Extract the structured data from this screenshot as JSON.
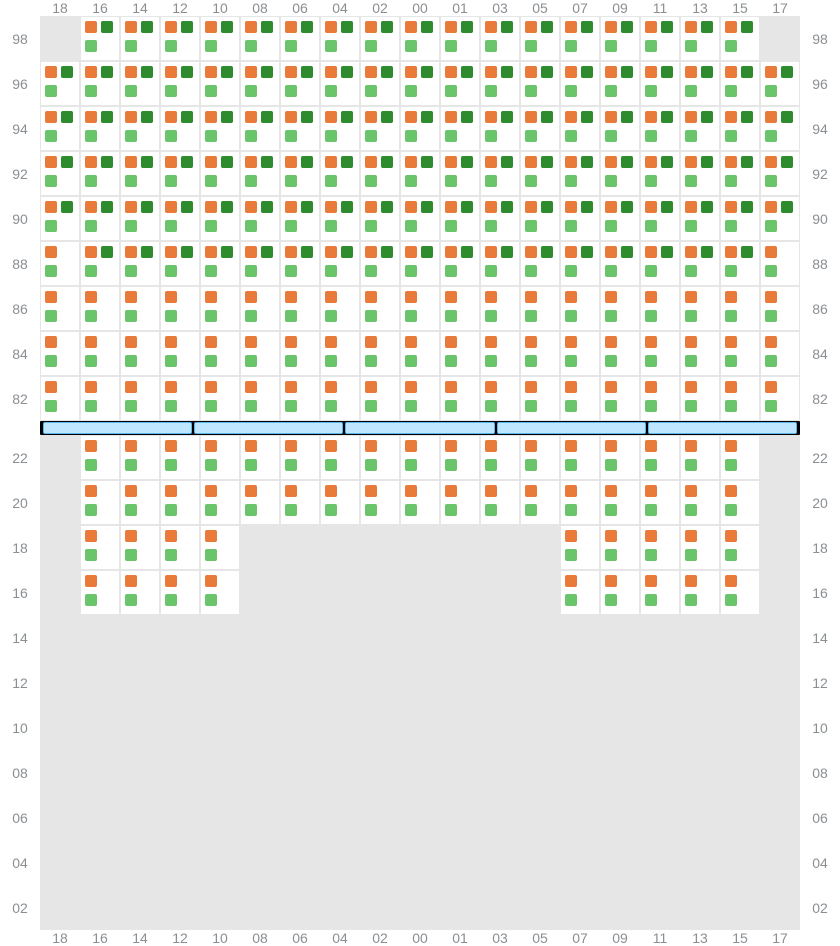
{
  "colors": {
    "orangeDark": "#e87a3a",
    "orangeLight": "#ea8f57",
    "greenDark": "#2e8b2e",
    "greenLight": "#6ac46a",
    "cellFilled": "#ffffff",
    "cellEmpty": "#e6e6e6",
    "gridLine": "#e6e6e6",
    "label": "#8a8f94",
    "dividerBg": "#000000",
    "dividerSeg": "#bfe6ff",
    "dividerBorder": "#5ab8ec"
  },
  "columnLabels": [
    "18",
    "16",
    "14",
    "12",
    "10",
    "08",
    "06",
    "04",
    "02",
    "00",
    "01",
    "03",
    "05",
    "07",
    "09",
    "11",
    "13",
    "15",
    "17"
  ],
  "topSection": {
    "rowLabels": [
      "98",
      "96",
      "94",
      "92",
      "90",
      "88",
      "86",
      "84",
      "82"
    ],
    "cells": {
      "note": "Each cell keyed by rowIndex_colIndex. 'state' is 'filled' or 'empty'. 'pattern' lists which of 4 sub-squares are present with their color key (tl,tr,bl,br).",
      "patterns": {
        "full4": {
          "tl": "orangeDark",
          "tr": "greenDark",
          "bl": "greenLight",
          "br": null
        },
        "full4b": {
          "tl": "orangeDark",
          "tr": "greenDark",
          "bl": "greenLight",
          "br": null
        },
        "twoStack": {
          "tl": "orangeDark",
          "tr": null,
          "bl": "greenLight",
          "br": null
        }
      }
    },
    "layout": [
      {
        "row": "98",
        "emptyCols": [
          "18",
          "17"
        ],
        "pattern": "full4",
        "filledCols": [
          "16",
          "14",
          "12",
          "10",
          "08",
          "06",
          "04",
          "02",
          "00",
          "01",
          "03",
          "05",
          "07",
          "09",
          "11",
          "13",
          "15"
        ]
      },
      {
        "row": "96",
        "emptyCols": [],
        "pattern": "full4",
        "filledCols": [
          "18",
          "16",
          "14",
          "12",
          "10",
          "08",
          "06",
          "04",
          "02",
          "00",
          "01",
          "03",
          "05",
          "07",
          "09",
          "11",
          "13",
          "15",
          "17"
        ]
      },
      {
        "row": "94",
        "emptyCols": [],
        "pattern": "full4",
        "filledCols": [
          "18",
          "16",
          "14",
          "12",
          "10",
          "08",
          "06",
          "04",
          "02",
          "00",
          "01",
          "03",
          "05",
          "07",
          "09",
          "11",
          "13",
          "15",
          "17"
        ]
      },
      {
        "row": "92",
        "emptyCols": [],
        "pattern": "full4",
        "filledCols": [
          "18",
          "16",
          "14",
          "12",
          "10",
          "08",
          "06",
          "04",
          "02",
          "00",
          "01",
          "03",
          "05",
          "07",
          "09",
          "11",
          "13",
          "15",
          "17"
        ]
      },
      {
        "row": "90",
        "emptyCols": [],
        "pattern": "full4",
        "filledCols": [
          "18",
          "16",
          "14",
          "12",
          "10",
          "08",
          "06",
          "04",
          "02",
          "00",
          "01",
          "03",
          "05",
          "07",
          "09",
          "11",
          "13",
          "15",
          "17"
        ]
      },
      {
        "row": "88",
        "emptyCols": [],
        "pattern": "mixed88",
        "filledCols": [
          "18",
          "16",
          "14",
          "12",
          "10",
          "08",
          "06",
          "04",
          "02",
          "00",
          "01",
          "03",
          "05",
          "07",
          "09",
          "11",
          "13",
          "15",
          "17"
        ]
      },
      {
        "row": "86",
        "emptyCols": [],
        "pattern": "twoStack",
        "filledCols": [
          "18",
          "16",
          "14",
          "12",
          "10",
          "08",
          "06",
          "04",
          "02",
          "00",
          "01",
          "03",
          "05",
          "07",
          "09",
          "11",
          "13",
          "15",
          "17"
        ]
      },
      {
        "row": "84",
        "emptyCols": [],
        "pattern": "twoStack",
        "filledCols": [
          "18",
          "16",
          "14",
          "12",
          "10",
          "08",
          "06",
          "04",
          "02",
          "00",
          "01",
          "03",
          "05",
          "07",
          "09",
          "11",
          "13",
          "15",
          "17"
        ]
      },
      {
        "row": "82",
        "emptyCols": [],
        "pattern": "twoStack",
        "filledCols": [
          "18",
          "16",
          "14",
          "12",
          "10",
          "08",
          "06",
          "04",
          "02",
          "00",
          "01",
          "03",
          "05",
          "07",
          "09",
          "11",
          "13",
          "15",
          "17"
        ]
      }
    ]
  },
  "dividerSegments": 5,
  "bottomSection": {
    "rowLabels": [
      "22",
      "20",
      "18",
      "16",
      "14",
      "12",
      "10",
      "08",
      "06",
      "04",
      "02"
    ],
    "layout": [
      {
        "row": "22",
        "emptyCols": [
          "18",
          "17"
        ],
        "pattern": "twoStack",
        "filledCols": [
          "16",
          "14",
          "12",
          "10",
          "08",
          "06",
          "04",
          "02",
          "00",
          "01",
          "03",
          "05",
          "07",
          "09",
          "11",
          "13",
          "15"
        ]
      },
      {
        "row": "20",
        "emptyCols": [
          "18",
          "17"
        ],
        "pattern": "twoStack",
        "filledCols": [
          "16",
          "14",
          "12",
          "10",
          "08",
          "06",
          "04",
          "02",
          "00",
          "01",
          "03",
          "05",
          "07",
          "09",
          "11",
          "13",
          "15"
        ]
      },
      {
        "row": "18",
        "emptyCols": [
          "18",
          "08",
          "06",
          "04",
          "02",
          "00",
          "01",
          "03",
          "05",
          "17"
        ],
        "pattern": "twoStack",
        "filledCols": [
          "16",
          "14",
          "12",
          "10",
          "07",
          "09",
          "11",
          "13",
          "15"
        ]
      },
      {
        "row": "16",
        "emptyCols": [
          "18",
          "08",
          "06",
          "04",
          "02",
          "00",
          "01",
          "03",
          "05",
          "17"
        ],
        "pattern": "twoStack",
        "filledCols": [
          "16",
          "14",
          "12",
          "10",
          "07",
          "09",
          "11",
          "13",
          "15"
        ]
      },
      {
        "row": "14",
        "emptyCols": [
          "18",
          "16",
          "14",
          "12",
          "10",
          "08",
          "06",
          "04",
          "02",
          "00",
          "01",
          "03",
          "05",
          "07",
          "09",
          "11",
          "13",
          "15",
          "17"
        ],
        "pattern": null,
        "filledCols": []
      },
      {
        "row": "12",
        "emptyCols": [
          "18",
          "16",
          "14",
          "12",
          "10",
          "08",
          "06",
          "04",
          "02",
          "00",
          "01",
          "03",
          "05",
          "07",
          "09",
          "11",
          "13",
          "15",
          "17"
        ],
        "pattern": null,
        "filledCols": []
      },
      {
        "row": "10",
        "emptyCols": [
          "18",
          "16",
          "14",
          "12",
          "10",
          "08",
          "06",
          "04",
          "02",
          "00",
          "01",
          "03",
          "05",
          "07",
          "09",
          "11",
          "13",
          "15",
          "17"
        ],
        "pattern": null,
        "filledCols": []
      },
      {
        "row": "08",
        "emptyCols": [
          "18",
          "16",
          "14",
          "12",
          "10",
          "08",
          "06",
          "04",
          "02",
          "00",
          "01",
          "03",
          "05",
          "07",
          "09",
          "11",
          "13",
          "15",
          "17"
        ],
        "pattern": null,
        "filledCols": []
      },
      {
        "row": "06",
        "emptyCols": [
          "18",
          "16",
          "14",
          "12",
          "10",
          "08",
          "06",
          "04",
          "02",
          "00",
          "01",
          "03",
          "05",
          "07",
          "09",
          "11",
          "13",
          "15",
          "17"
        ],
        "pattern": null,
        "filledCols": []
      },
      {
        "row": "04",
        "emptyCols": [
          "18",
          "16",
          "14",
          "12",
          "10",
          "08",
          "06",
          "04",
          "02",
          "00",
          "01",
          "03",
          "05",
          "07",
          "09",
          "11",
          "13",
          "15",
          "17"
        ],
        "pattern": null,
        "filledCols": []
      },
      {
        "row": "02",
        "emptyCols": [
          "18",
          "16",
          "14",
          "12",
          "10",
          "08",
          "06",
          "04",
          "02",
          "00",
          "01",
          "03",
          "05",
          "07",
          "09",
          "11",
          "13",
          "15",
          "17"
        ],
        "pattern": null,
        "filledCols": []
      }
    ]
  },
  "row88SpecialCols": [
    "18",
    "17"
  ]
}
